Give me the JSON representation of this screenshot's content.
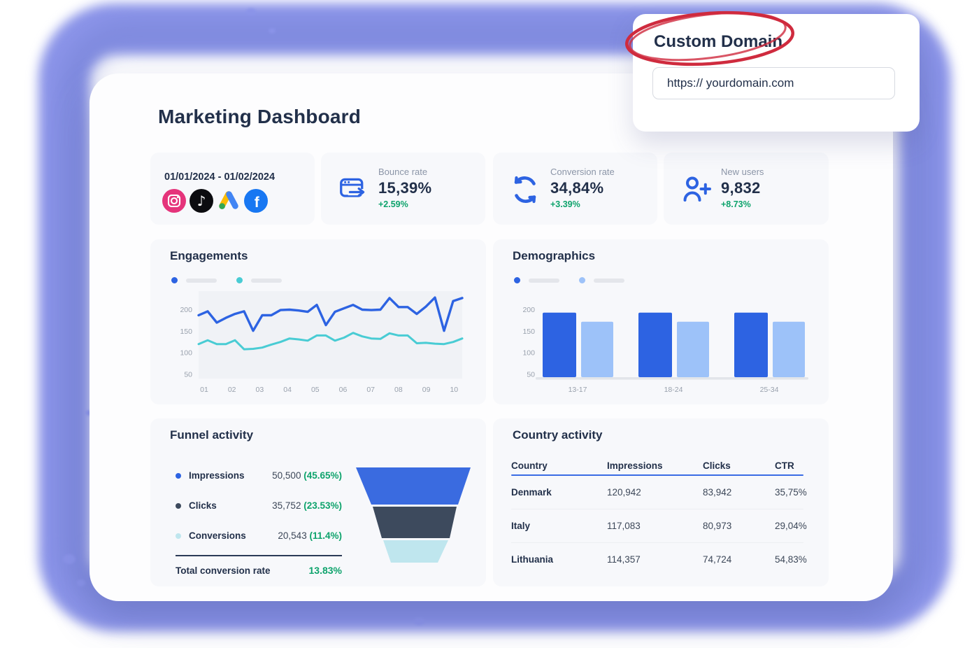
{
  "colors": {
    "navy": "#22304a",
    "text": "#3c4758",
    "gray_label": "#8b95a7",
    "axis": "#99a1ad",
    "green": "#0ea36c",
    "accent_blue": "#2d63e2",
    "light_blue": "#9dc2f9",
    "teal": "#49ccd4",
    "card_bg": "#f7f8fb",
    "plot_bg": "#f0f2f6",
    "baseline": "#e2e5ea",
    "divider": "#eceef2",
    "table_line": "#3a6ce5",
    "funnel_divider": "#2c3b57",
    "funnel_blue": "#3a6be0",
    "funnel_dark": "#3d4a5d",
    "funnel_cyan": "#bfe6ee",
    "purple": "#8b94e9",
    "purple_dark": "#7380d2",
    "red_annotation": "#cf2b3e",
    "instagram_pink": "#e5347b",
    "tiktok_black": "#0c0c10",
    "facebook_blue": "#1877f2",
    "gads_yellow": "#fbbc04",
    "gads_blue": "#4285f4",
    "gads_green": "#34a853",
    "input_border": "#d7dae1"
  },
  "custom_domain": {
    "title": "Custom Domain",
    "input_value": "https:// yourdomain.com"
  },
  "header": {
    "title": "Marketing Dashboard"
  },
  "stats": {
    "date_range": "01/01/2024 - 01/02/2024",
    "platforms": [
      "instagram",
      "tiktok",
      "google-ads",
      "facebook"
    ],
    "cards": [
      {
        "label": "Bounce rate",
        "value": "15,39%",
        "delta": "+2.59%",
        "icon": "browser-exit-icon"
      },
      {
        "label": "Conversion rate",
        "value": "34,84%",
        "delta": "+3.39%",
        "icon": "refresh-icon"
      },
      {
        "label": "New users",
        "value": "9,832",
        "delta": "+8.73%",
        "icon": "user-plus-icon"
      }
    ]
  },
  "chart_data": [
    {
      "id": "engagements",
      "type": "line",
      "title": "Engagements",
      "x_ticks": [
        "01",
        "02",
        "03",
        "04",
        "05",
        "06",
        "07",
        "08",
        "09",
        "10"
      ],
      "ylim": [
        40,
        243
      ],
      "yticks": [
        50,
        100,
        150,
        200
      ],
      "grid": false,
      "legend": "top-left, two unlabeled dot+pill placeholders",
      "series": [
        {
          "name": "series-blue",
          "color": "#2d63e2",
          "values": [
            187,
            196,
            170,
            181,
            190,
            196,
            151,
            187,
            187,
            199,
            200,
            198,
            195,
            211,
            164,
            195,
            203,
            211,
            200,
            199,
            200,
            227,
            206,
            206,
            190,
            207,
            228,
            151,
            220,
            227
          ]
        },
        {
          "name": "series-teal",
          "color": "#49ccd4",
          "values": [
            120,
            129,
            120,
            120,
            129,
            108,
            109,
            112,
            119,
            125,
            133,
            131,
            128,
            140,
            140,
            128,
            135,
            146,
            138,
            133,
            132,
            145,
            140,
            140,
            122,
            123,
            121,
            120,
            125,
            133
          ]
        }
      ]
    },
    {
      "id": "demographics",
      "type": "bar",
      "title": "Demographics",
      "categories": [
        "13-17",
        "18-24",
        "25-34"
      ],
      "ylim": [
        40,
        243
      ],
      "yticks": [
        50,
        100,
        150,
        200
      ],
      "grid": false,
      "legend": "top-left, two unlabeled dot+pill placeholders",
      "series": [
        {
          "name": "series-dark-blue",
          "color": "#2d63e2",
          "values": [
            193,
            193,
            193
          ]
        },
        {
          "name": "series-light-blue",
          "color": "#9dc2f9",
          "values": [
            172,
            172,
            172
          ]
        }
      ]
    },
    {
      "id": "funnel-activity",
      "type": "funnel",
      "title": "Funnel activity",
      "stages": [
        {
          "label": "Impressions",
          "value": "50,500",
          "pct": "(45.65%)",
          "color": "#3a6be0",
          "dot": "#2d63e2"
        },
        {
          "label": "Clicks",
          "value": "35,752",
          "pct": "(23.53%)",
          "color": "#3d4a5d",
          "dot": "#3d4a5d"
        },
        {
          "label": "Conversions",
          "value": "20,543",
          "pct": "(11.4%)",
          "color": "#bfe6ee",
          "dot": "#bfe6ee"
        }
      ],
      "total": {
        "label": "Total conversion rate",
        "value": "13.83%"
      }
    }
  ],
  "country_table": {
    "title": "Country activity",
    "headers": [
      "Country",
      "Impressions",
      "Clicks",
      "CTR"
    ],
    "rows": [
      {
        "country": "Denmark",
        "impressions": "120,942",
        "clicks": "83,942",
        "ctr": "35,75%"
      },
      {
        "country": "Italy",
        "impressions": "117,083",
        "clicks": "80,973",
        "ctr": "29,04%"
      },
      {
        "country": "Lithuania",
        "impressions": "114,357",
        "clicks": "74,724",
        "ctr": "54,83%"
      }
    ]
  }
}
